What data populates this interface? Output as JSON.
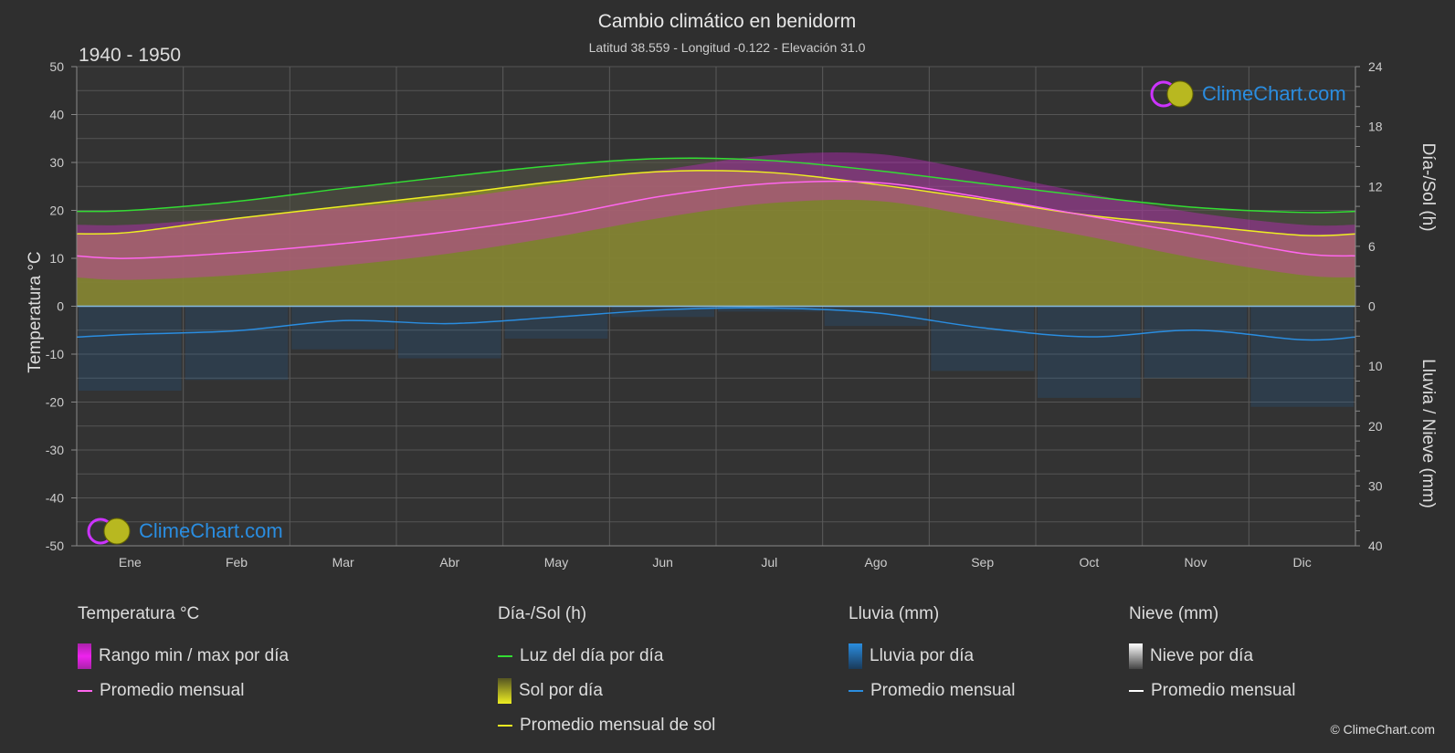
{
  "chart_data": {
    "type": "area",
    "title": "Cambio climático en benidorm",
    "subtitle": "Latitud 38.559 - Longitud -0.122 - Elevación 31.0",
    "period": "1940 - 1950",
    "months": [
      "Ene",
      "Feb",
      "Mar",
      "Abr",
      "May",
      "Jun",
      "Jul",
      "Ago",
      "Sep",
      "Oct",
      "Nov",
      "Dic"
    ],
    "y_left": {
      "label": "Temperatura °C",
      "ylim": [
        -50,
        50
      ],
      "ticks": [
        50,
        40,
        30,
        20,
        10,
        0,
        -10,
        -20,
        -30,
        -40,
        -50
      ]
    },
    "y_right_top": {
      "label": "Día-/Sol (h)",
      "ylim": [
        0,
        24
      ],
      "ticks": [
        24,
        18,
        12,
        6,
        0
      ]
    },
    "y_right_bottom": {
      "label": "Lluvia / Nieve (mm)",
      "ylim": [
        0,
        40
      ],
      "ticks": [
        0,
        10,
        20,
        30,
        40
      ]
    },
    "series": {
      "daylight_h": [
        9.6,
        10.5,
        11.8,
        13.0,
        14.1,
        14.8,
        14.6,
        13.6,
        12.3,
        11.0,
        9.9,
        9.4
      ],
      "sunshine_avg_h": [
        7.4,
        8.8,
        10.0,
        11.2,
        12.5,
        13.5,
        13.4,
        12.2,
        10.7,
        9.1,
        8.1,
        7.1
      ],
      "temp_avg_c": [
        10.0,
        11.2,
        13.1,
        15.6,
        18.8,
        23.0,
        25.6,
        25.8,
        22.7,
        18.8,
        15.0,
        11.0
      ],
      "temp_max_c": [
        17.0,
        18.5,
        20.5,
        22.5,
        25.5,
        28.5,
        31.5,
        31.8,
        28.0,
        23.5,
        19.5,
        17.0
      ],
      "temp_min_c": [
        5.5,
        6.5,
        8.5,
        11.0,
        14.5,
        18.5,
        21.5,
        22.0,
        18.5,
        14.5,
        10.0,
        6.5
      ],
      "rain_avg_mm": [
        4.7,
        4.1,
        2.4,
        2.9,
        1.8,
        0.6,
        0.3,
        1.1,
        3.6,
        5.1,
        4.0,
        5.6
      ],
      "snow_avg_mm": [
        0,
        0,
        0,
        0,
        0,
        0,
        0,
        0,
        0,
        0,
        0,
        0
      ]
    },
    "grid": true
  },
  "legend": {
    "temp": {
      "head": "Temperatura °C",
      "range": "Rango min / max por día",
      "avg": "Promedio mensual"
    },
    "sun": {
      "head": "Día-/Sol (h)",
      "daylight": "Luz del día por día",
      "sun": "Sol por día",
      "avg": "Promedio mensual de sol"
    },
    "rain": {
      "head": "Lluvia (mm)",
      "daily": "Lluvia por día",
      "avg": "Promedio mensual"
    },
    "snow": {
      "head": "Nieve (mm)",
      "daily": "Nieve por día",
      "avg": "Promedio mensual"
    }
  },
  "logo_text": "ClimeChart.com",
  "copyright": "© ClimeChart.com",
  "colors": {
    "background": "#2f2f2f",
    "daylight": "#33dd33",
    "sunshine_fill": "#8a8a30",
    "sunshine_avg": "#eeee22",
    "temp_range": "#dd22dd",
    "temp_avg": "#ff66ee",
    "rain": "#1e6fbf",
    "rain_avg": "#2a8de0",
    "snow_avg": "#ffffff",
    "logo": "#2a8de0"
  }
}
